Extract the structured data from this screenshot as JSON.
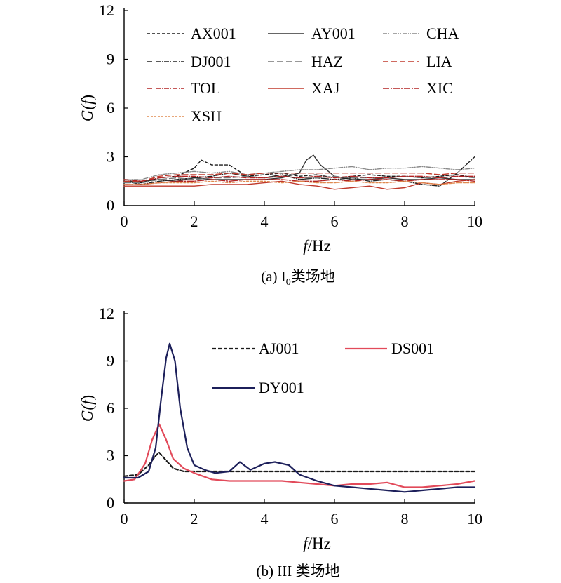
{
  "colors": {
    "black": "#1a1a1a",
    "gray": "#666666",
    "red": "#c0392b",
    "darkred": "#b22222",
    "pink": "#e24a5a",
    "navy": "#1c1f5a",
    "orange": "#e08a4f"
  },
  "chart_data": [
    {
      "type": "line",
      "caption": "(a) I0类场地",
      "caption_parts": {
        "prefix": "(a) I",
        "sub": "0",
        "suffix": "类场地"
      },
      "xlabel": "f/Hz",
      "xlabel_parts": {
        "italic": "f",
        "rest": "/Hz"
      },
      "ylabel": "G(f)",
      "ylabel_parts": {
        "g": "G(",
        "f": "f",
        "close": ")"
      },
      "xlim": [
        0,
        10
      ],
      "ylim": [
        0,
        12
      ],
      "xticks": [
        "0",
        "2",
        "4",
        "6",
        "8",
        "10"
      ],
      "yticks": [
        "0",
        "3",
        "6",
        "9",
        "12"
      ],
      "legend_placement": "top, 3 columns",
      "series": [
        {
          "name": "AX001",
          "color": "#1a1a1a",
          "dash": "4,3",
          "x": [
            0,
            0.5,
            1,
            1.5,
            2,
            2.2,
            2.5,
            3,
            3.5,
            4,
            4.5,
            5,
            5.5,
            6,
            6.5,
            7,
            7.5,
            8,
            8.5,
            9,
            9.5,
            10
          ],
          "y": [
            1.5,
            1.4,
            1.7,
            1.8,
            2.3,
            2.8,
            2.5,
            2.5,
            1.8,
            1.9,
            2.0,
            1.8,
            1.9,
            1.7,
            1.8,
            1.9,
            1.8,
            1.8,
            1.7,
            1.8,
            1.9,
            1.7
          ]
        },
        {
          "name": "AY001",
          "color": "#333333",
          "dash": "",
          "x": [
            0,
            0.5,
            1,
            1.5,
            2,
            2.5,
            3,
            3.5,
            4,
            4.5,
            5,
            5.2,
            5.4,
            5.6,
            6,
            6.5,
            7,
            7.5,
            8,
            8.5,
            9,
            9.5,
            10
          ],
          "y": [
            1.5,
            1.5,
            1.6,
            1.5,
            1.7,
            1.6,
            1.6,
            1.6,
            1.6,
            1.7,
            2.0,
            2.8,
            3.1,
            2.5,
            1.8,
            1.6,
            1.6,
            1.7,
            1.6,
            1.6,
            1.7,
            1.6,
            1.6
          ]
        },
        {
          "name": "CHA",
          "color": "#888888",
          "dash": "6,2,1,2,1,2",
          "x": [
            0,
            0.5,
            1,
            1.5,
            2,
            2.5,
            3,
            3.5,
            4,
            4.5,
            5,
            5.5,
            6,
            6.5,
            7,
            7.5,
            8,
            8.5,
            9,
            9.5,
            10
          ],
          "y": [
            1.6,
            1.6,
            1.9,
            2.0,
            2.1,
            2.0,
            2.1,
            1.9,
            2.0,
            2.1,
            2.2,
            2.2,
            2.3,
            2.4,
            2.2,
            2.3,
            2.3,
            2.4,
            2.3,
            2.2,
            2.3
          ]
        },
        {
          "name": "DJ001",
          "color": "#222222",
          "dash": "7,2,1,2",
          "x": [
            0,
            0.5,
            1,
            1.5,
            2,
            2.5,
            3,
            3.5,
            4,
            4.5,
            5,
            5.5,
            6,
            6.5,
            7,
            7.5,
            8,
            8.5,
            9,
            9.5,
            10
          ],
          "y": [
            1.5,
            1.3,
            1.5,
            1.6,
            1.7,
            1.8,
            2.0,
            1.8,
            1.7,
            1.9,
            1.6,
            1.7,
            1.6,
            1.7,
            1.5,
            1.6,
            1.5,
            1.3,
            1.2,
            2.0,
            3.0
          ]
        },
        {
          "name": "HAZ",
          "color": "#777777",
          "dash": "9,4",
          "x": [
            0,
            0.5,
            1,
            1.5,
            2,
            2.5,
            3,
            3.5,
            4,
            4.5,
            5,
            5.5,
            6,
            6.5,
            7,
            7.5,
            8,
            8.5,
            9,
            9.5,
            10
          ],
          "y": [
            1.4,
            1.4,
            1.6,
            1.7,
            1.6,
            1.7,
            1.7,
            1.8,
            1.7,
            1.8,
            1.7,
            1.7,
            1.8,
            1.7,
            1.7,
            1.7,
            1.8,
            1.7,
            1.7,
            1.8,
            1.7
          ]
        },
        {
          "name": "LIA",
          "color": "#c0392b",
          "dash": "8,4",
          "x": [
            0,
            0.5,
            1,
            1.5,
            2,
            2.5,
            3,
            3.5,
            4,
            4.5,
            5,
            5.5,
            6,
            6.5,
            7,
            7.5,
            8,
            8.5,
            9,
            9.5,
            10
          ],
          "y": [
            1.5,
            1.5,
            1.8,
            1.9,
            1.9,
            1.9,
            2.0,
            1.9,
            2.0,
            2.0,
            2.0,
            2.0,
            2.0,
            2.0,
            2.0,
            2.0,
            2.0,
            2.0,
            1.9,
            2.0,
            2.0
          ]
        },
        {
          "name": "TOL",
          "color": "#b22222",
          "dash": "7,2,1,2",
          "x": [
            0,
            0.5,
            1,
            1.5,
            2,
            2.5,
            3,
            3.5,
            4,
            4.5,
            5,
            5.5,
            6,
            6.5,
            7,
            7.5,
            8,
            8.5,
            9,
            9.5,
            10
          ],
          "y": [
            1.6,
            1.5,
            1.7,
            1.8,
            1.8,
            1.7,
            1.8,
            1.7,
            1.7,
            1.8,
            1.7,
            1.8,
            1.7,
            1.8,
            1.7,
            1.7,
            1.8,
            1.8,
            1.7,
            1.8,
            1.8
          ]
        },
        {
          "name": "XAJ",
          "color": "#c0392b",
          "dash": "",
          "x": [
            0,
            0.5,
            1,
            1.5,
            2,
            2.5,
            3,
            3.5,
            4,
            4.5,
            5,
            5.5,
            6,
            6.5,
            7,
            7.5,
            8,
            8.5,
            9,
            9.5,
            10
          ],
          "y": [
            1.2,
            1.2,
            1.2,
            1.2,
            1.2,
            1.3,
            1.3,
            1.3,
            1.4,
            1.5,
            1.3,
            1.2,
            1.0,
            1.1,
            1.2,
            1.0,
            1.1,
            1.4,
            1.3,
            1.5,
            1.6
          ]
        },
        {
          "name": "XIC",
          "color": "#b22222",
          "dash": "9,2,2,2",
          "x": [
            0,
            0.5,
            1,
            1.5,
            2,
            2.5,
            3,
            3.5,
            4,
            4.5,
            5,
            5.5,
            6,
            6.5,
            7,
            7.5,
            8,
            8.5,
            9,
            9.5,
            10
          ],
          "y": [
            1.3,
            1.3,
            1.4,
            1.5,
            1.5,
            1.6,
            1.5,
            1.6,
            1.6,
            1.6,
            1.5,
            1.5,
            1.6,
            1.5,
            1.6,
            1.6,
            1.5,
            1.6,
            1.6,
            1.6,
            1.5
          ]
        },
        {
          "name": "XSH",
          "color": "#e08a4f",
          "dash": "3,2",
          "x": [
            0,
            0.5,
            1,
            1.5,
            2,
            2.5,
            3,
            3.5,
            4,
            4.5,
            5,
            5.5,
            6,
            6.5,
            7,
            7.5,
            8,
            8.5,
            9,
            9.5,
            10
          ],
          "y": [
            1.3,
            1.3,
            1.4,
            1.4,
            1.4,
            1.5,
            1.4,
            1.5,
            1.5,
            1.4,
            1.5,
            1.4,
            1.4,
            1.5,
            1.4,
            1.4,
            1.5,
            1.4,
            1.3,
            1.4,
            1.4
          ]
        }
      ]
    },
    {
      "type": "line",
      "caption": "(b) III 类场地",
      "xlabel": "f/Hz",
      "xlabel_parts": {
        "italic": "f",
        "rest": "/Hz"
      },
      "ylabel": "G(f)",
      "ylabel_parts": {
        "g": "G(",
        "f": "f",
        "close": ")"
      },
      "xlim": [
        0,
        10
      ],
      "ylim": [
        0,
        12
      ],
      "xticks": [
        "0",
        "2",
        "4",
        "6",
        "8",
        "10"
      ],
      "yticks": [
        "0",
        "3",
        "6",
        "9",
        "12"
      ],
      "legend_placement": "top-right",
      "series": [
        {
          "name": "AJ001",
          "color": "#1a1a1a",
          "dash": "5,3",
          "x": [
            0,
            0.4,
            0.7,
            0.9,
            1.0,
            1.2,
            1.4,
            1.7,
            2.0,
            3,
            4,
            5,
            6,
            7,
            8,
            9,
            10
          ],
          "y": [
            1.7,
            1.8,
            2.4,
            3.0,
            3.2,
            2.7,
            2.2,
            2.0,
            2.0,
            2.0,
            2.0,
            2.0,
            2.0,
            2.0,
            2.0,
            2.0,
            2.0
          ]
        },
        {
          "name": "DS001",
          "color": "#e24a5a",
          "dash": "",
          "x": [
            0,
            0.3,
            0.6,
            0.8,
            1.0,
            1.2,
            1.4,
            1.7,
            2.0,
            2.5,
            3.0,
            3.5,
            4.0,
            4.5,
            5.0,
            5.5,
            6.0,
            6.5,
            7.0,
            7.5,
            8.0,
            8.5,
            9.0,
            9.5,
            10
          ],
          "y": [
            1.4,
            1.5,
            2.5,
            4.0,
            5.0,
            4.0,
            2.8,
            2.2,
            1.9,
            1.5,
            1.4,
            1.4,
            1.4,
            1.4,
            1.3,
            1.2,
            1.1,
            1.2,
            1.2,
            1.3,
            1.0,
            1.0,
            1.1,
            1.2,
            1.4
          ]
        },
        {
          "name": "DY001",
          "color": "#1c1f5a",
          "dash": "",
          "x": [
            0,
            0.4,
            0.7,
            0.9,
            1.05,
            1.2,
            1.3,
            1.45,
            1.6,
            1.8,
            2.0,
            2.3,
            2.6,
            3.0,
            3.3,
            3.6,
            4.0,
            4.3,
            4.7,
            5.0,
            5.5,
            6.0,
            6.5,
            7.0,
            7.5,
            8.0,
            8.5,
            9.0,
            9.5,
            10
          ],
          "y": [
            1.6,
            1.6,
            2.0,
            3.5,
            6.5,
            9.2,
            10.1,
            9.0,
            6.0,
            3.5,
            2.4,
            2.1,
            1.9,
            2.0,
            2.6,
            2.1,
            2.5,
            2.6,
            2.4,
            1.8,
            1.4,
            1.1,
            1.0,
            0.9,
            0.8,
            0.7,
            0.8,
            0.9,
            1.0,
            1.0
          ]
        }
      ]
    }
  ]
}
